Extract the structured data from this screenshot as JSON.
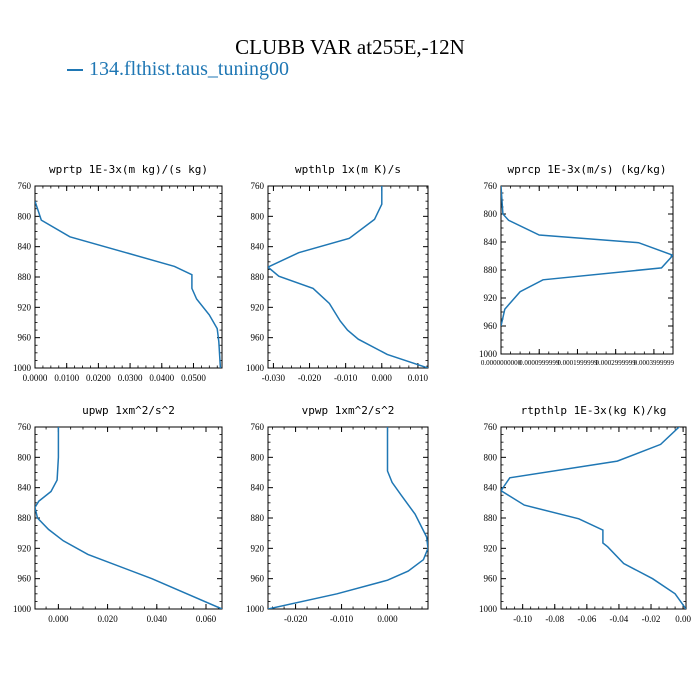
{
  "header": {
    "title": "CLUBB VAR at255E,-12N",
    "legend_label": "134.flthist.taus_tuning00",
    "series_color": "#1f77b4"
  },
  "chart_data": [
    {
      "type": "line",
      "title": "wprtp  1E-3x(m kg)/(s kg)",
      "xlim": [
        0.0,
        0.059
      ],
      "ylim": [
        760,
        1000
      ],
      "y_inverted": true,
      "xticks": [
        "0.0000",
        "0.0100",
        "0.0200",
        "0.0300",
        "0.0400",
        "0.0500"
      ],
      "xtick_values": [
        0.0,
        0.01,
        0.02,
        0.03,
        0.04,
        0.05
      ],
      "yticks": [
        "760",
        "800",
        "840",
        "880",
        "920",
        "960",
        "1000"
      ],
      "ytick_values": [
        760,
        800,
        840,
        880,
        920,
        960,
        1000
      ],
      "series": [
        {
          "x": [
            0.0,
            0.002,
            0.011,
            0.044,
            0.0495,
            0.0495,
            0.051,
            0.055,
            0.0575,
            0.058,
            0.0585
          ],
          "y": [
            780,
            805,
            827,
            866,
            877,
            895,
            909,
            930,
            948,
            965,
            1000
          ]
        }
      ]
    },
    {
      "type": "line",
      "title": "wpthlp  1x(m K)/s",
      "xlim": [
        -0.0315,
        0.0128
      ],
      "ylim": [
        760,
        1000
      ],
      "y_inverted": true,
      "xticks": [
        "-0.030",
        "-0.020",
        "-0.010",
        "0.000",
        "0.010"
      ],
      "xtick_values": [
        -0.03,
        -0.02,
        -0.01,
        0.0,
        0.01
      ],
      "yticks": [
        "760",
        "800",
        "840",
        "880",
        "920",
        "960",
        "1000"
      ],
      "ytick_values": [
        760,
        800,
        840,
        880,
        920,
        960,
        1000
      ],
      "series": [
        {
          "x": [
            0.0,
            0.0,
            -0.002,
            -0.009,
            -0.023,
            -0.0315,
            -0.0285,
            -0.019,
            -0.0145,
            -0.0115,
            -0.0095,
            -0.0065,
            0.0015,
            0.0128
          ],
          "y": [
            760,
            784,
            804,
            829,
            848,
            867,
            879,
            895,
            915,
            938,
            950,
            962,
            982,
            1000
          ]
        }
      ]
    },
    {
      "type": "line",
      "title": "wprcp  1E-3x(m/s) (kg/kg)",
      "xlim": [
        0.0,
        0.00045
      ],
      "ylim": [
        760,
        1000
      ],
      "y_inverted": true,
      "xticks": [
        "0.0000000000",
        "0.0000999999",
        "0.0001999999",
        "0.0002999999",
        "0.0003999999"
      ],
      "xtick_values": [
        0.0,
        0.0001,
        0.0002,
        0.0003,
        0.0004
      ],
      "yticks": [
        "760",
        "800",
        "840",
        "880",
        "920",
        "960",
        "1000"
      ],
      "ytick_values": [
        760,
        800,
        840,
        880,
        920,
        960,
        1000
      ],
      "series": [
        {
          "x": [
            0.0,
            5e-06,
            2e-05,
            0.0001,
            0.00036,
            0.00045,
            0.00042,
            0.00011,
            5e-05,
            1e-05,
            0.0
          ],
          "y": [
            760,
            800,
            809,
            830,
            841,
            859,
            877,
            894,
            911,
            936,
            960
          ]
        }
      ]
    },
    {
      "type": "line",
      "title": "upwp  1xm^2/s^2",
      "xlim": [
        -0.0095,
        0.0665
      ],
      "ylim": [
        760,
        1000
      ],
      "y_inverted": true,
      "xticks": [
        "0.000",
        "0.020",
        "0.040",
        "0.060"
      ],
      "xtick_values": [
        0.0,
        0.02,
        0.04,
        0.06
      ],
      "yticks": [
        "760",
        "800",
        "840",
        "880",
        "920",
        "960",
        "1000"
      ],
      "ytick_values": [
        760,
        800,
        840,
        880,
        920,
        960,
        1000
      ],
      "series": [
        {
          "x": [
            0.0,
            0.0,
            -0.0005,
            -0.003,
            -0.008,
            -0.0095,
            -0.0085,
            -0.004,
            0.002,
            0.012,
            0.038,
            0.0665
          ],
          "y": [
            755,
            800,
            830,
            845,
            858,
            866,
            880,
            895,
            910,
            928,
            960,
            1000
          ]
        }
      ]
    },
    {
      "type": "line",
      "title": "vpwp  1xm^2/s^2",
      "xlim": [
        -0.026,
        0.0088
      ],
      "ylim": [
        760,
        1000
      ],
      "y_inverted": true,
      "xticks": [
        "-0.020",
        "-0.010",
        "0.000"
      ],
      "xtick_values": [
        -0.02,
        -0.01,
        0.0
      ],
      "yticks": [
        "760",
        "800",
        "840",
        "880",
        "920",
        "960",
        "1000"
      ],
      "ytick_values": [
        760,
        800,
        840,
        880,
        920,
        960,
        1000
      ],
      "series": [
        {
          "x": [
            0.0,
            0.0,
            0.001,
            0.003,
            0.006,
            0.0085,
            0.0088,
            0.0078,
            0.0045,
            0.0,
            -0.011,
            -0.026
          ],
          "y": [
            755,
            818,
            833,
            850,
            875,
            905,
            920,
            935,
            950,
            962,
            980,
            1000
          ]
        }
      ]
    },
    {
      "type": "line",
      "title": "rtpthlp  1E-3x(kg K)/kg",
      "xlim": [
        -0.1135,
        0.0018
      ],
      "ylim": [
        760,
        1000
      ],
      "y_inverted": true,
      "xticks": [
        "-0.10",
        "-0.08",
        "-0.06",
        "-0.04",
        "-0.02",
        "0.00"
      ],
      "xtick_values": [
        -0.1,
        -0.08,
        -0.06,
        -0.04,
        -0.02,
        0.0
      ],
      "yticks": [
        "760",
        "800",
        "840",
        "880",
        "920",
        "960",
        "1000"
      ],
      "ytick_values": [
        760,
        800,
        840,
        880,
        920,
        960,
        1000
      ],
      "series": [
        {
          "x": [
            0.0,
            -0.014,
            -0.041,
            -0.108,
            -0.1135,
            -0.099,
            -0.065,
            -0.05,
            -0.05,
            -0.047,
            -0.037,
            -0.019,
            -0.005,
            0.0018
          ],
          "y": [
            755,
            783,
            805,
            827,
            844,
            863,
            881,
            896,
            913,
            918,
            940,
            960,
            980,
            1000
          ]
        }
      ]
    }
  ]
}
